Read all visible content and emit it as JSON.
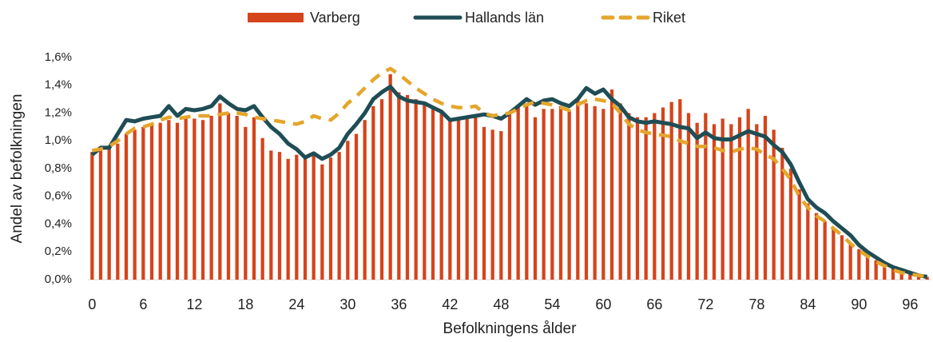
{
  "chart_data": {
    "type": "bar_line",
    "x_label": "Befolkningens ålder",
    "y_label": "Andel av befolkningen",
    "categories": [
      0,
      null,
      null,
      null,
      null,
      null,
      6,
      null,
      null,
      null,
      null,
      null,
      12,
      null,
      null,
      null,
      null,
      null,
      18,
      null,
      null,
      null,
      null,
      null,
      24,
      null,
      null,
      null,
      null,
      null,
      30,
      null,
      null,
      null,
      null,
      null,
      36,
      null,
      null,
      null,
      null,
      null,
      42,
      null,
      null,
      null,
      null,
      null,
      48,
      null,
      null,
      null,
      null,
      null,
      54,
      null,
      null,
      null,
      null,
      null,
      60,
      null,
      null,
      null,
      null,
      null,
      66,
      null,
      null,
      null,
      null,
      null,
      72,
      null,
      null,
      null,
      null,
      null,
      78,
      null,
      null,
      null,
      null,
      null,
      84,
      null,
      null,
      null,
      null,
      null,
      90,
      null,
      null,
      null,
      null,
      null,
      96,
      null,
      null
    ],
    "series": [
      {
        "name": "Varberg",
        "kind": "bar",
        "color": "#d5441b",
        "values": [
          0.92,
          0.94,
          0.95,
          0.98,
          1.05,
          1.08,
          1.1,
          1.12,
          1.13,
          1.15,
          1.13,
          1.17,
          1.16,
          1.15,
          1.18,
          1.27,
          1.2,
          1.18,
          1.1,
          1.17,
          1.02,
          0.93,
          0.92,
          0.87,
          0.9,
          0.88,
          0.9,
          0.83,
          0.88,
          0.92,
          1.0,
          1.05,
          1.15,
          1.25,
          1.3,
          1.48,
          1.35,
          1.33,
          1.3,
          1.28,
          1.25,
          1.2,
          1.15,
          1.17,
          1.17,
          1.18,
          1.1,
          1.08,
          1.07,
          1.2,
          1.25,
          1.27,
          1.17,
          1.23,
          1.23,
          1.25,
          1.22,
          1.3,
          1.27,
          1.25,
          1.23,
          1.37,
          1.27,
          1.2,
          1.17,
          1.17,
          1.2,
          1.24,
          1.28,
          1.3,
          1.2,
          1.13,
          1.2,
          1.12,
          1.16,
          1.12,
          1.17,
          1.23,
          1.12,
          1.18,
          1.08,
          0.95,
          0.8,
          0.65,
          0.55,
          0.48,
          0.42,
          0.37,
          0.32,
          0.26,
          0.22,
          0.17,
          0.14,
          0.11,
          0.08,
          0.06,
          0.05,
          0.03,
          0.02
        ]
      },
      {
        "name": "Hallands län",
        "kind": "line",
        "color": "#1f4d55",
        "values": [
          0.9,
          0.95,
          0.95,
          1.05,
          1.15,
          1.14,
          1.16,
          1.17,
          1.18,
          1.25,
          1.18,
          1.23,
          1.22,
          1.23,
          1.25,
          1.32,
          1.27,
          1.23,
          1.22,
          1.25,
          1.17,
          1.1,
          1.05,
          0.98,
          0.94,
          0.88,
          0.91,
          0.87,
          0.9,
          0.95,
          1.05,
          1.12,
          1.2,
          1.3,
          1.35,
          1.39,
          1.32,
          1.29,
          1.28,
          1.27,
          1.24,
          1.21,
          1.15,
          1.16,
          1.17,
          1.18,
          1.19,
          1.18,
          1.16,
          1.2,
          1.25,
          1.3,
          1.26,
          1.29,
          1.3,
          1.27,
          1.25,
          1.3,
          1.38,
          1.34,
          1.37,
          1.3,
          1.25,
          1.17,
          1.14,
          1.13,
          1.14,
          1.13,
          1.12,
          1.1,
          1.09,
          1.02,
          1.06,
          1.02,
          1.01,
          1.01,
          1.04,
          1.07,
          1.05,
          1.03,
          0.97,
          0.92,
          0.83,
          0.7,
          0.58,
          0.52,
          0.48,
          0.42,
          0.37,
          0.32,
          0.25,
          0.2,
          0.16,
          0.12,
          0.09,
          0.07,
          0.05,
          0.03,
          0.02
        ]
      },
      {
        "name": "Riket",
        "kind": "dashed",
        "color": "#e4a62c",
        "values": [
          0.93,
          0.94,
          0.96,
          1.0,
          1.05,
          1.09,
          1.1,
          1.12,
          1.15,
          1.17,
          1.16,
          1.17,
          1.18,
          1.18,
          1.18,
          1.19,
          1.2,
          1.2,
          1.19,
          1.17,
          1.16,
          1.15,
          1.14,
          1.13,
          1.12,
          1.14,
          1.18,
          1.16,
          1.15,
          1.2,
          1.27,
          1.32,
          1.38,
          1.44,
          1.49,
          1.52,
          1.48,
          1.43,
          1.38,
          1.34,
          1.3,
          1.27,
          1.25,
          1.24,
          1.24,
          1.25,
          1.2,
          1.18,
          1.19,
          1.2,
          1.23,
          1.26,
          1.28,
          1.27,
          1.26,
          1.24,
          1.22,
          1.26,
          1.29,
          1.3,
          1.29,
          1.27,
          1.2,
          1.12,
          1.08,
          1.06,
          1.05,
          1.04,
          1.03,
          1.0,
          0.98,
          0.96,
          0.96,
          0.95,
          0.93,
          0.92,
          0.94,
          0.95,
          0.94,
          0.9,
          0.87,
          0.8,
          0.72,
          0.6,
          0.52,
          0.46,
          0.42,
          0.37,
          0.32,
          0.26,
          0.21,
          0.17,
          0.13,
          0.1,
          0.07,
          0.05,
          0.04,
          0.03,
          0.02
        ]
      }
    ],
    "ylim": [
      0,
      1.6
    ],
    "yticks": [
      {
        "value": 0,
        "label": "0,0%"
      },
      {
        "value": 0.2,
        "label": "0,2%"
      },
      {
        "value": 0.4,
        "label": "0,4%"
      },
      {
        "value": 0.6,
        "label": "0,6%"
      },
      {
        "value": 0.8,
        "label": "0,8%"
      },
      {
        "value": 1.0,
        "label": "1,0%"
      },
      {
        "value": 1.2,
        "label": "1,2%"
      },
      {
        "value": 1.4,
        "label": "1,4%"
      },
      {
        "value": 1.6,
        "label": "1,6%"
      }
    ],
    "grid": false,
    "legend": "top"
  }
}
